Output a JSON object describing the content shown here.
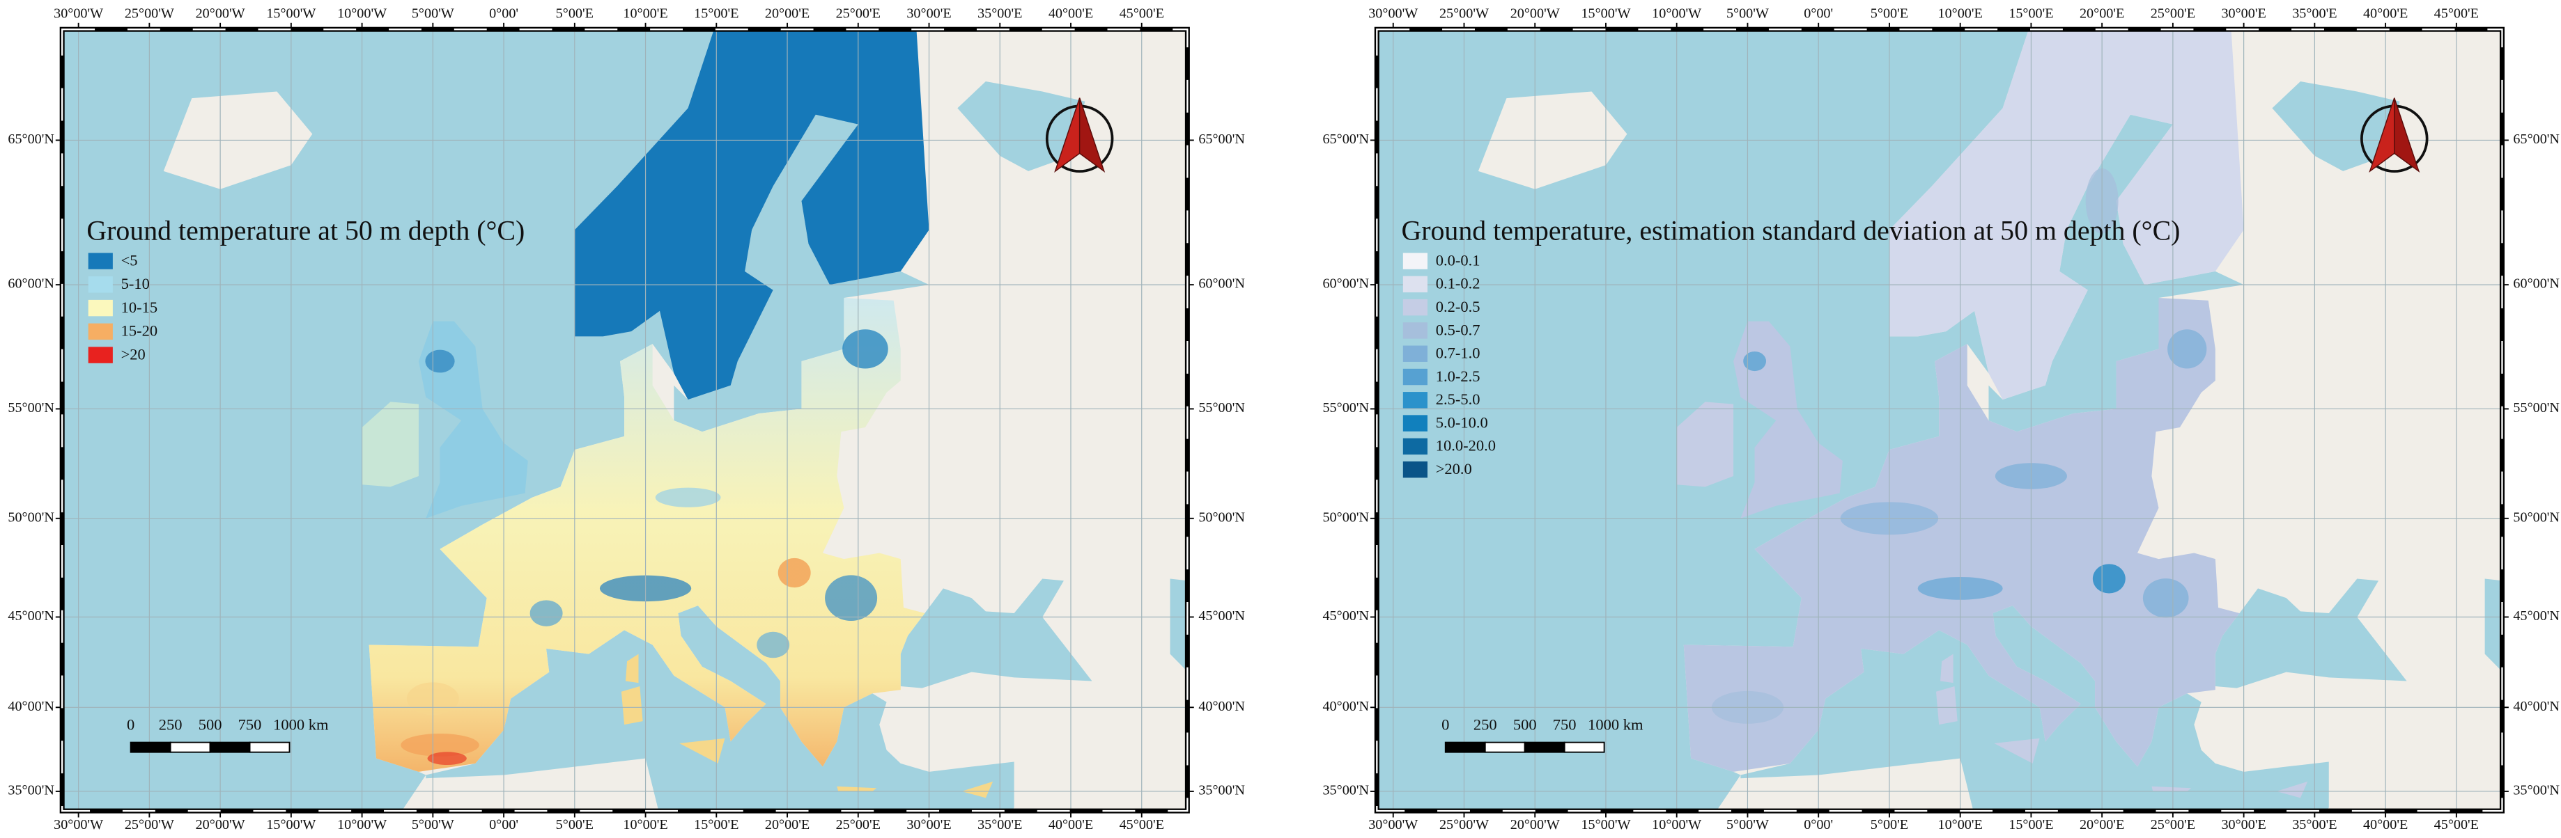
{
  "maps": [
    {
      "title": "Ground temperature at 50 m depth (°C)",
      "legend": [
        {
          "label": "<5",
          "color": "#1679b9"
        },
        {
          "label": "5-10",
          "color": "#a6dced"
        },
        {
          "label": "10-15",
          "color": "#fbf8bd"
        },
        {
          "label": "15-20",
          "color": "#f6ae63"
        },
        {
          "label": ">20",
          "color": "#e8221f"
        }
      ],
      "scale_bar": [
        "0",
        "250",
        "500",
        "750",
        "1000 km"
      ],
      "lon_ticks": [
        {
          "value": -30,
          "label": "30°00'W"
        },
        {
          "value": -25,
          "label": "25°00'W"
        },
        {
          "value": -20,
          "label": "20°00'W"
        },
        {
          "value": -15,
          "label": "15°00'W"
        },
        {
          "value": -10,
          "label": "10°00'W"
        },
        {
          "value": -5,
          "label": "5°00'W"
        },
        {
          "value": 0,
          "label": "0°00'"
        },
        {
          "value": 5,
          "label": "5°00'E"
        },
        {
          "value": 10,
          "label": "10°00'E"
        },
        {
          "value": 15,
          "label": "15°00'E"
        },
        {
          "value": 20,
          "label": "20°00'E"
        },
        {
          "value": 25,
          "label": "25°00'E"
        },
        {
          "value": 30,
          "label": "30°00'E"
        },
        {
          "value": 35,
          "label": "35°00'E"
        },
        {
          "value": 40,
          "label": "40°00'E"
        },
        {
          "value": 45,
          "label": "45°00'E"
        }
      ],
      "lat_ticks": [
        {
          "value": 65,
          "label": "65°00'N"
        },
        {
          "value": 60,
          "label": "60°00'N"
        },
        {
          "value": 55,
          "label": "55°00'N"
        },
        {
          "value": 50,
          "label": "50°00'N"
        },
        {
          "value": 45,
          "label": "45°00'N"
        },
        {
          "value": 40,
          "label": "40°00'N"
        },
        {
          "value": 35,
          "label": "35°00'N"
        }
      ]
    },
    {
      "title": "Ground temperature, estimation standard deviation at 50 m depth (°C)",
      "legend": [
        {
          "label": "0.0-0.1",
          "color": "#f3f4f8"
        },
        {
          "label": "0.1-0.2",
          "color": "#dde1ef"
        },
        {
          "label": "0.2-0.5",
          "color": "#c5cde5"
        },
        {
          "label": "0.5-0.7",
          "color": "#a6bfdc"
        },
        {
          "label": "0.7-1.0",
          "color": "#7fb0d8"
        },
        {
          "label": "1.0-2.5",
          "color": "#56a1d2"
        },
        {
          "label": "2.5-5.0",
          "color": "#2b92cb"
        },
        {
          "label": "5.0-10.0",
          "color": "#1180bd"
        },
        {
          "label": "10.0-20.0",
          "color": "#0d6aa2"
        },
        {
          "label": ">20.0",
          "color": "#0a5488"
        }
      ],
      "scale_bar": [
        "0",
        "250",
        "500",
        "750",
        "1000 km"
      ],
      "lon_ticks": [
        {
          "value": -30,
          "label": "30°00'W"
        },
        {
          "value": -25,
          "label": "25°00'W"
        },
        {
          "value": -20,
          "label": "20°00'W"
        },
        {
          "value": -15,
          "label": "15°00'W"
        },
        {
          "value": -10,
          "label": "10°00'W"
        },
        {
          "value": -5,
          "label": "5°00'W"
        },
        {
          "value": 0,
          "label": "0°00'"
        },
        {
          "value": 5,
          "label": "5°00'E"
        },
        {
          "value": 10,
          "label": "10°00'E"
        },
        {
          "value": 15,
          "label": "15°00'E"
        },
        {
          "value": 20,
          "label": "20°00'E"
        },
        {
          "value": 25,
          "label": "25°00'E"
        },
        {
          "value": 30,
          "label": "30°00'E"
        },
        {
          "value": 35,
          "label": "35°00'E"
        },
        {
          "value": 40,
          "label": "40°00'E"
        },
        {
          "value": 45,
          "label": "45°00'E"
        }
      ],
      "lat_ticks": [
        {
          "value": 65,
          "label": "65°00'N"
        },
        {
          "value": 60,
          "label": "60°00'N"
        },
        {
          "value": 55,
          "label": "55°00'N"
        },
        {
          "value": 50,
          "label": "50°00'N"
        },
        {
          "value": 45,
          "label": "45°00'N"
        },
        {
          "value": 40,
          "label": "40°00'N"
        },
        {
          "value": 35,
          "label": "35°00'N"
        }
      ]
    }
  ]
}
